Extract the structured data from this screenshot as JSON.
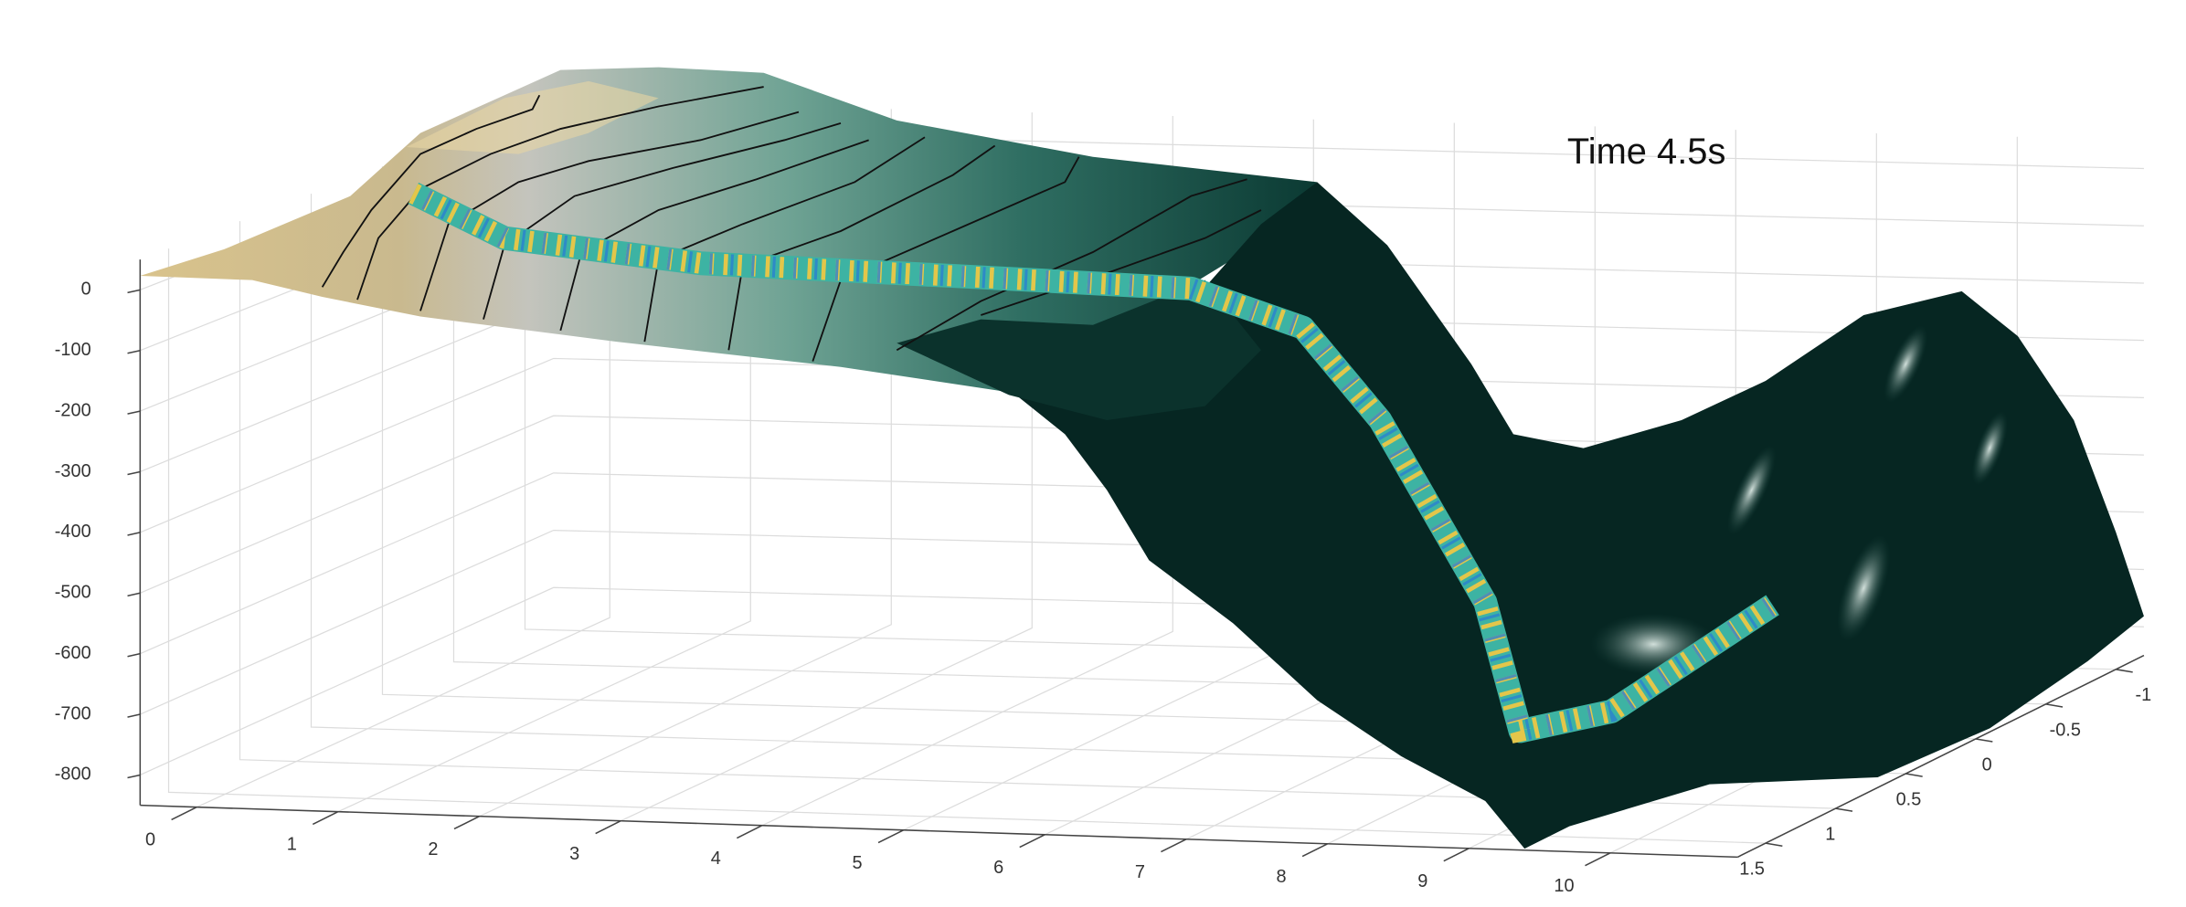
{
  "chart_data": {
    "type": "surface",
    "annotation": "Time 4.5s",
    "xlim": [
      -0.4,
      10.9
    ],
    "xticks": [
      0,
      1,
      2,
      3,
      4,
      5,
      6,
      7,
      8,
      9,
      10
    ],
    "ylim": [
      -1.2,
      1.7
    ],
    "ydir": "reverse",
    "yticks": [
      -1,
      -0.5,
      0,
      0.5,
      1,
      1.5
    ],
    "zlim": [
      -850,
      50
    ],
    "zticks": [
      -800,
      -700,
      -600,
      -500,
      -400,
      -300,
      -200,
      -100,
      0
    ],
    "grid": true
  }
}
